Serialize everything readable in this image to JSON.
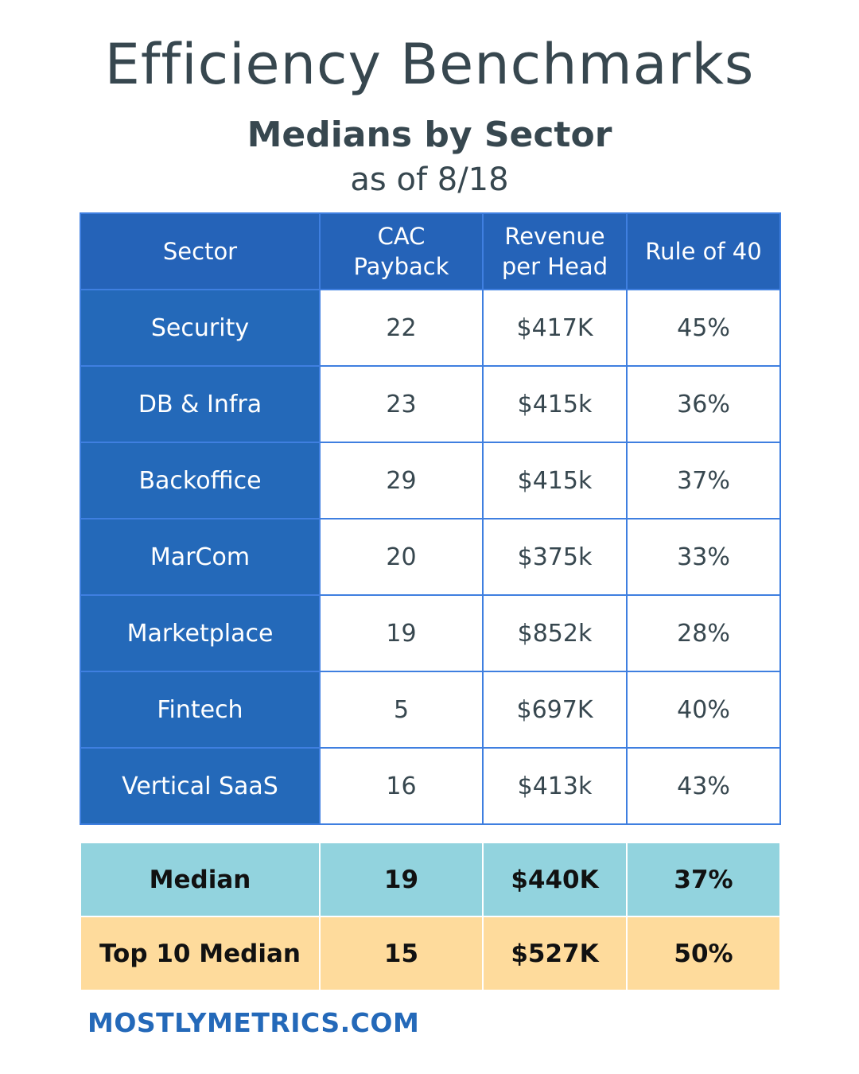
{
  "header": {
    "title": "Efficiency Benchmarks",
    "subtitle": "Medians by Sector",
    "as_of": "as of 8/18"
  },
  "footer": {
    "site": "MOSTLYMETRICS.COM"
  },
  "colors": {
    "header_blue": "#2563b8",
    "sector_blue": "#2469b9",
    "border_blue": "#3f7fe0",
    "median_teal": "#92d3de",
    "top10_orange": "#fedb9c",
    "text_dark": "#37474f"
  },
  "chart_data": {
    "type": "table",
    "columns": [
      {
        "line1": "Sector",
        "line2": ""
      },
      {
        "line1": "CAC",
        "line2": "Payback"
      },
      {
        "line1": "Revenue",
        "line2": "per Head"
      },
      {
        "line1": "Rule of 40",
        "line2": ""
      }
    ],
    "rows": [
      {
        "sector": "Security",
        "cac_payback": "22",
        "revenue_per_head": "$417K",
        "rule_of_40": "45%"
      },
      {
        "sector": "DB & Infra",
        "cac_payback": "23",
        "revenue_per_head": "$415k",
        "rule_of_40": "36%"
      },
      {
        "sector": "Backoffice",
        "cac_payback": "29",
        "revenue_per_head": "$415k",
        "rule_of_40": "37%"
      },
      {
        "sector": "MarCom",
        "cac_payback": "20",
        "revenue_per_head": "$375k",
        "rule_of_40": "33%"
      },
      {
        "sector": "Marketplace",
        "cac_payback": "19",
        "revenue_per_head": "$852k",
        "rule_of_40": "28%"
      },
      {
        "sector": "Fintech",
        "cac_payback": "5",
        "revenue_per_head": "$697K",
        "rule_of_40": "40%"
      },
      {
        "sector": "Vertical SaaS",
        "cac_payback": "16",
        "revenue_per_head": "$413k",
        "rule_of_40": "43%"
      }
    ],
    "summary": [
      {
        "label": "Median",
        "cac_payback": "19",
        "revenue_per_head": "$440K",
        "rule_of_40": "37%"
      },
      {
        "label": "Top 10 Median",
        "cac_payback": "15",
        "revenue_per_head": "$527K",
        "rule_of_40": "50%"
      }
    ]
  }
}
